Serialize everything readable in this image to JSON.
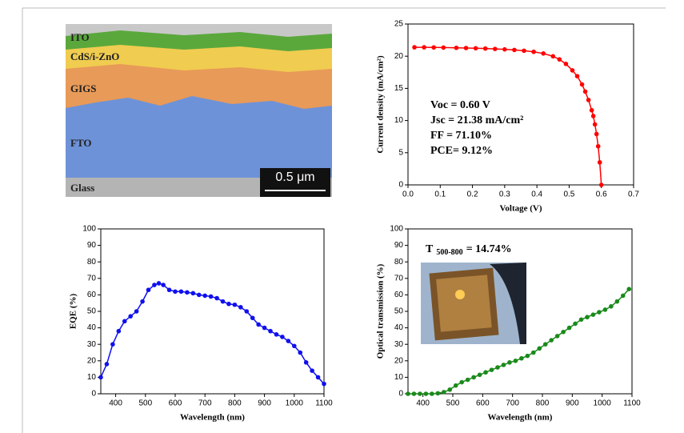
{
  "image": {
    "labels": [
      "ITO",
      "CdS/i-ZnO",
      "GIGS",
      "FTO",
      "Glass"
    ],
    "scale_bar": "0.5 μm"
  },
  "chart_data": [
    {
      "type": "line",
      "x_label": "Voltage (V)",
      "y_label": "Current density (mA/cm²)",
      "xlim": [
        0,
        0.7
      ],
      "xticks": [
        {
          "value": 0,
          "label": "0.0"
        },
        0.1,
        0.2,
        0.3,
        0.4,
        0.5,
        0.6,
        0.7
      ],
      "ylim": [
        0,
        25
      ],
      "yticks": [
        0,
        5,
        10,
        15,
        20,
        25
      ],
      "annotations": [
        "Voc = 0.60 V",
        "Jsc = 21.38 mA/cm²",
        "FF = 71.10%",
        "PCE= 9.12%"
      ],
      "series": [
        {
          "color": "#ff0000",
          "x": [
            0.02,
            0.05,
            0.08,
            0.11,
            0.15,
            0.18,
            0.21,
            0.24,
            0.27,
            0.3,
            0.33,
            0.36,
            0.39,
            0.42,
            0.45,
            0.47,
            0.49,
            0.51,
            0.525,
            0.54,
            0.55,
            0.56,
            0.57,
            0.575,
            0.58,
            0.585,
            0.59,
            0.595,
            0.6
          ],
          "values": [
            21.38,
            21.38,
            21.36,
            21.34,
            21.3,
            21.27,
            21.23,
            21.19,
            21.13,
            21.06,
            20.97,
            20.85,
            20.68,
            20.42,
            19.98,
            19.5,
            18.8,
            17.8,
            16.9,
            15.6,
            14.5,
            13.2,
            11.6,
            10.7,
            9.4,
            7.9,
            6.0,
            3.5,
            0
          ]
        }
      ]
    },
    {
      "type": "line",
      "x_label": "Wavelength (nm)",
      "y_label": "EQE (%)",
      "xlim": [
        350,
        1100
      ],
      "xticks": [
        400,
        500,
        600,
        700,
        800,
        900,
        1000,
        1100
      ],
      "ylim": [
        0,
        100
      ],
      "yticks": [
        0,
        10,
        20,
        30,
        40,
        50,
        60,
        70,
        80,
        90,
        100
      ],
      "series": [
        {
          "color": "#1010ee",
          "x": [
            350,
            370,
            390,
            410,
            430,
            450,
            470,
            490,
            510,
            530,
            545,
            560,
            580,
            600,
            620,
            640,
            660,
            680,
            700,
            720,
            740,
            760,
            780,
            800,
            820,
            840,
            860,
            880,
            900,
            920,
            940,
            960,
            980,
            1000,
            1020,
            1040,
            1060,
            1080,
            1100
          ],
          "values": [
            10,
            18,
            30,
            38,
            44,
            47,
            50,
            56,
            63,
            66,
            67,
            66,
            63,
            62,
            62,
            61.5,
            61,
            60,
            59.5,
            59,
            58,
            56,
            54.5,
            54,
            52.5,
            50,
            46,
            42,
            40,
            38,
            36,
            34.5,
            32,
            29,
            25,
            19,
            14,
            10,
            6
          ]
        }
      ]
    },
    {
      "type": "line",
      "x_label": "Wavelength (nm)",
      "y_label": "Optical transmission (%)",
      "annotation": "T",
      "annotation_subscript": "500-800",
      "annotation_value": "= 14.74%",
      "xlim": [
        350,
        1100
      ],
      "xticks": [
        400,
        500,
        600,
        700,
        800,
        900,
        1000,
        1100
      ],
      "ylim": [
        0,
        100
      ],
      "yticks": [
        0,
        10,
        20,
        30,
        40,
        50,
        60,
        70,
        80,
        90,
        100
      ],
      "series": [
        {
          "color": "#1a8a1a",
          "x": [
            350,
            370,
            390,
            410,
            430,
            450,
            470,
            490,
            510,
            530,
            550,
            570,
            590,
            610,
            630,
            650,
            670,
            690,
            710,
            730,
            750,
            770,
            790,
            810,
            830,
            850,
            870,
            890,
            910,
            930,
            950,
            970,
            990,
            1010,
            1030,
            1050,
            1070,
            1090
          ],
          "values": [
            0,
            0,
            0,
            0,
            0,
            0.3,
            1,
            2.5,
            5,
            7,
            8.5,
            10,
            11.5,
            13,
            14.5,
            16,
            17.5,
            19,
            20,
            21.5,
            23,
            25,
            27.5,
            30,
            32.5,
            35,
            37.5,
            40,
            42.5,
            45,
            46.5,
            48,
            49.5,
            51,
            53,
            56,
            59.5,
            63.5
          ]
        }
      ]
    }
  ]
}
